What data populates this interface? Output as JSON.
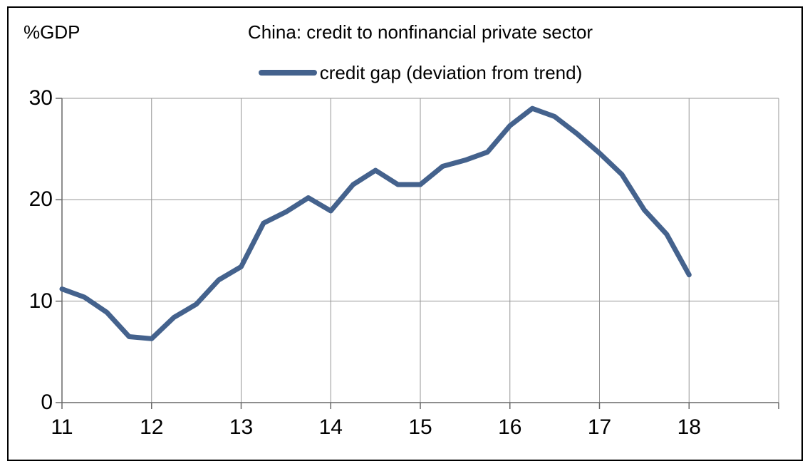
{
  "chart": {
    "title": "China: credit to nonfinancial private sector",
    "y_unit": "%GDP",
    "legend_label": "credit gap (deviation from trend)"
  },
  "colors": {
    "background": "#FFFFFF",
    "frame": "#000000",
    "text": "#000000",
    "line": "#44628D",
    "gridline": "#959595",
    "axis": "#696969"
  },
  "chart_data": {
    "type": "line",
    "title": "China: credit to nonfinancial private sector",
    "ylabel": "%GDP",
    "xlabel": "",
    "grid": true,
    "legend_position": "top-center",
    "xlim": [
      11,
      19
    ],
    "ylim": [
      0,
      30
    ],
    "xticks": [
      11,
      12,
      13,
      14,
      15,
      16,
      17,
      18
    ],
    "yticks": [
      0,
      10,
      20,
      30
    ],
    "series": [
      {
        "name": "credit gap (deviation from trend)",
        "x": [
          11.0,
          11.25,
          11.5,
          11.75,
          12.0,
          12.25,
          12.5,
          12.75,
          13.0,
          13.25,
          13.5,
          13.75,
          14.0,
          14.25,
          14.5,
          14.75,
          15.0,
          15.25,
          15.5,
          15.75,
          16.0,
          16.25,
          16.5,
          16.75,
          17.0,
          17.25,
          17.5,
          17.75,
          18.0
        ],
        "values": [
          11.2,
          10.4,
          8.9,
          6.5,
          6.3,
          8.4,
          9.7,
          12.1,
          13.4,
          17.7,
          18.8,
          20.2,
          18.9,
          21.5,
          22.9,
          21.5,
          21.5,
          23.3,
          23.9,
          24.7,
          27.3,
          29.0,
          28.2,
          26.5,
          24.6,
          22.5,
          19.0,
          16.6,
          12.6
        ]
      }
    ]
  }
}
